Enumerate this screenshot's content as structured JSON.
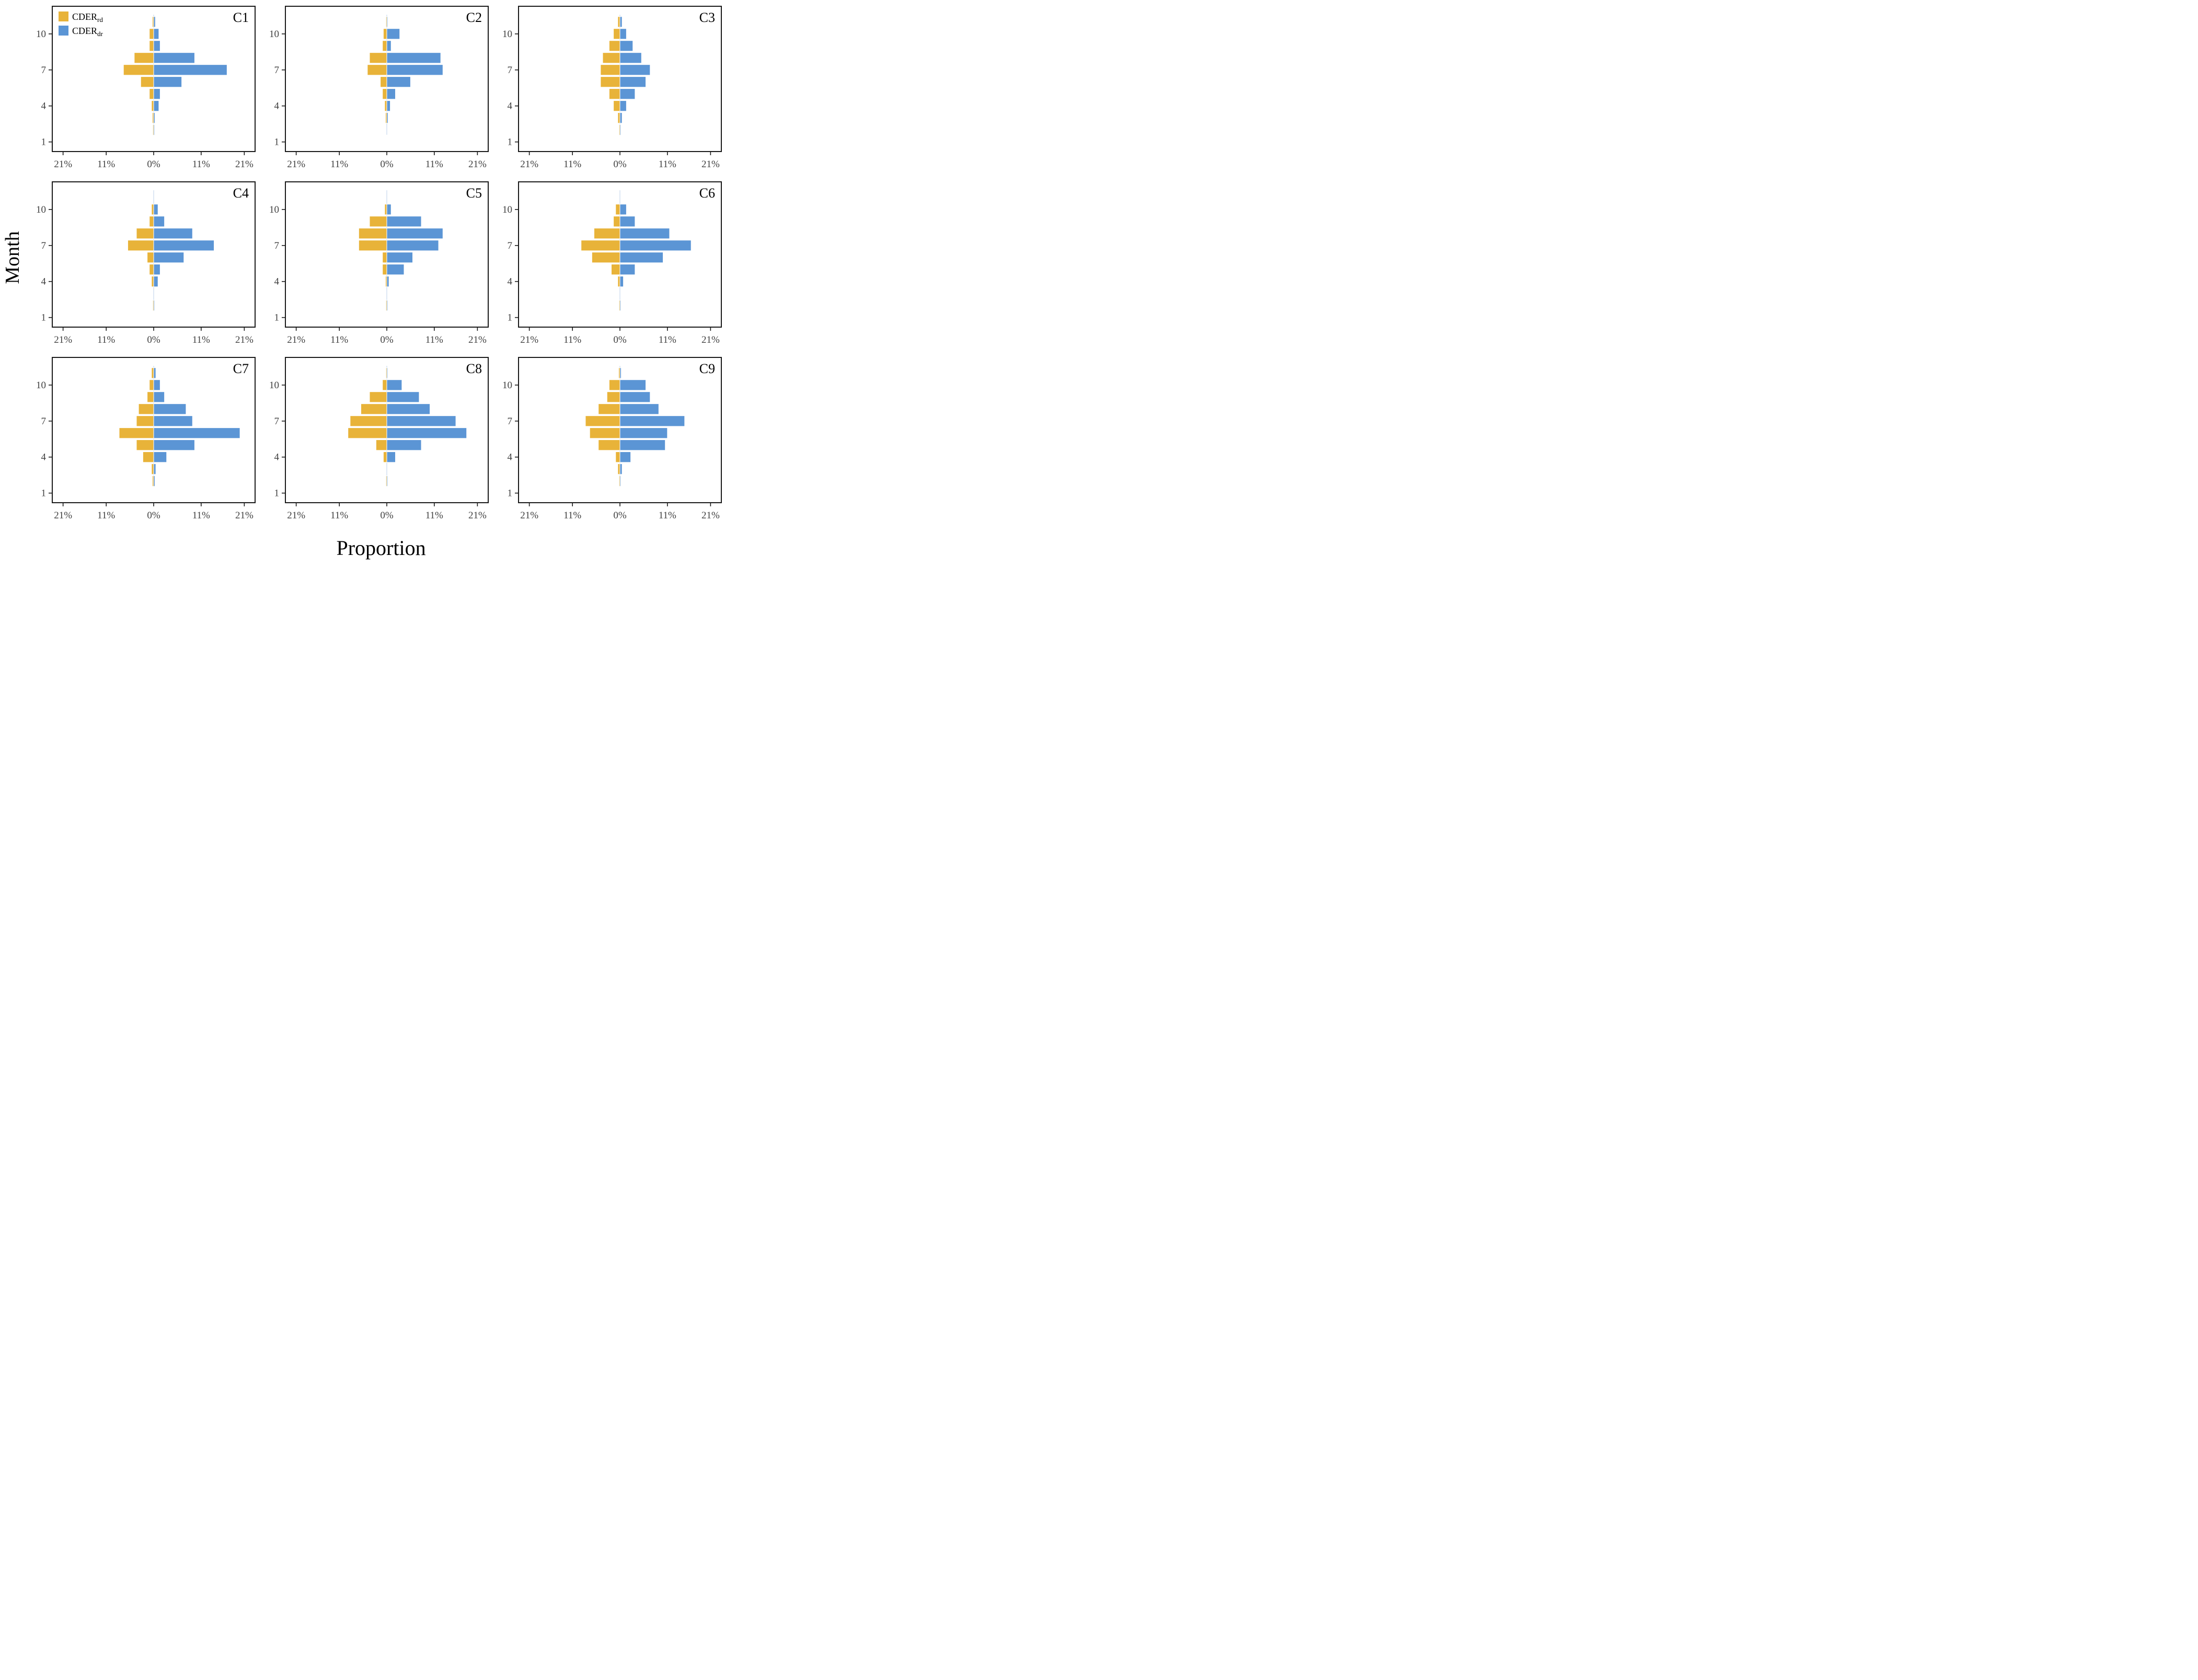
{
  "figure": {
    "ylabel": "Month",
    "xlabel": "Proportion"
  },
  "legend": {
    "items": [
      {
        "name": "CDER",
        "sub": "rd",
        "color": "#E8B339"
      },
      {
        "name": "CDER",
        "sub": "dr",
        "color": "#5B95D5"
      }
    ]
  },
  "axes": {
    "x_tick_values": [
      -21,
      -11,
      0,
      11,
      21
    ],
    "x_tick_labels": [
      "21%",
      "11%",
      "0%",
      "11%",
      "21%"
    ],
    "y_tick_values": [
      1,
      4,
      7,
      10
    ],
    "y_tick_labels": [
      "1",
      "4",
      "7",
      "10"
    ],
    "xlim": [
      -23.5,
      23.5
    ],
    "ylim": [
      0.2,
      12.3
    ],
    "tick_label_color": "#404040",
    "border_color": "#1a1a1a"
  },
  "chart_data": {
    "type": "bar",
    "orientation": "horizontal-diverging",
    "xlabel": "Proportion",
    "ylabel": "Month",
    "series_names": [
      "CDER_rd (left, gold)",
      "CDER_dr (right, blue)"
    ],
    "months": [
      1,
      2,
      3,
      4,
      5,
      6,
      7,
      8,
      9,
      10,
      11,
      12
    ],
    "panels": [
      {
        "label": "C1",
        "rd": [
          0,
          0.2,
          0.3,
          0.5,
          1.0,
          3.0,
          7.0,
          4.5,
          1.0,
          1.0,
          0.3,
          0
        ],
        "dr": [
          0,
          0.2,
          0.3,
          1.2,
          1.5,
          6.5,
          17.0,
          9.5,
          1.5,
          1.2,
          0.4,
          0
        ]
      },
      {
        "label": "C2",
        "rd": [
          0,
          0,
          0.3,
          0.5,
          1.0,
          1.5,
          4.5,
          4.0,
          1.0,
          0.8,
          0.2,
          0
        ],
        "dr": [
          0,
          0,
          0.3,
          0.8,
          2.0,
          5.5,
          13.0,
          12.5,
          1.0,
          3.0,
          0.2,
          0
        ]
      },
      {
        "label": "C3",
        "rd": [
          0,
          0.2,
          0.5,
          1.5,
          2.5,
          4.5,
          4.5,
          4.0,
          2.5,
          1.5,
          0.5,
          0
        ],
        "dr": [
          0,
          0.2,
          0.5,
          1.5,
          3.5,
          6.0,
          7.0,
          5.0,
          3.0,
          1.5,
          0.5,
          0
        ]
      },
      {
        "label": "C4",
        "rd": [
          0,
          0.2,
          0,
          0.5,
          1.0,
          1.5,
          6.0,
          4.0,
          1.0,
          0.5,
          0,
          0
        ],
        "dr": [
          0,
          0.2,
          0,
          1.0,
          1.5,
          7.0,
          14.0,
          9.0,
          2.5,
          1.0,
          0,
          0
        ]
      },
      {
        "label": "C5",
        "rd": [
          0,
          0.2,
          0,
          0.3,
          1.0,
          1.0,
          6.5,
          6.5,
          4.0,
          0.5,
          0,
          0
        ],
        "dr": [
          0,
          0.2,
          0,
          0.5,
          4.0,
          6.0,
          12.0,
          13.0,
          8.0,
          1.0,
          0,
          0
        ]
      },
      {
        "label": "C6",
        "rd": [
          0,
          0.2,
          0,
          0.5,
          2.0,
          6.5,
          9.0,
          6.0,
          1.5,
          1.0,
          0,
          0
        ],
        "dr": [
          0,
          0.2,
          0,
          0.8,
          3.5,
          10.0,
          16.5,
          11.5,
          3.5,
          1.5,
          0,
          0
        ]
      },
      {
        "label": "C7",
        "rd": [
          0,
          0.3,
          0.5,
          2.5,
          4.0,
          8.0,
          4.0,
          3.5,
          1.5,
          1.0,
          0.5,
          0
        ],
        "dr": [
          0,
          0.3,
          0.5,
          3.0,
          9.5,
          20.0,
          9.0,
          7.5,
          2.5,
          1.5,
          0.5,
          0
        ]
      },
      {
        "label": "C8",
        "rd": [
          0,
          0.2,
          0,
          0.8,
          2.5,
          9.0,
          8.5,
          6.0,
          4.0,
          1.0,
          0.2,
          0
        ],
        "dr": [
          0,
          0.2,
          0,
          2.0,
          8.0,
          18.5,
          16.0,
          10.0,
          7.5,
          3.5,
          0.2,
          0
        ]
      },
      {
        "label": "C9",
        "rd": [
          0,
          0.2,
          0.5,
          1.0,
          5.0,
          7.0,
          8.0,
          5.0,
          3.0,
          2.5,
          0.3,
          0
        ],
        "dr": [
          0,
          0.2,
          0.5,
          2.5,
          10.5,
          11.0,
          15.0,
          9.0,
          7.0,
          6.0,
          0.3,
          0
        ]
      }
    ]
  }
}
